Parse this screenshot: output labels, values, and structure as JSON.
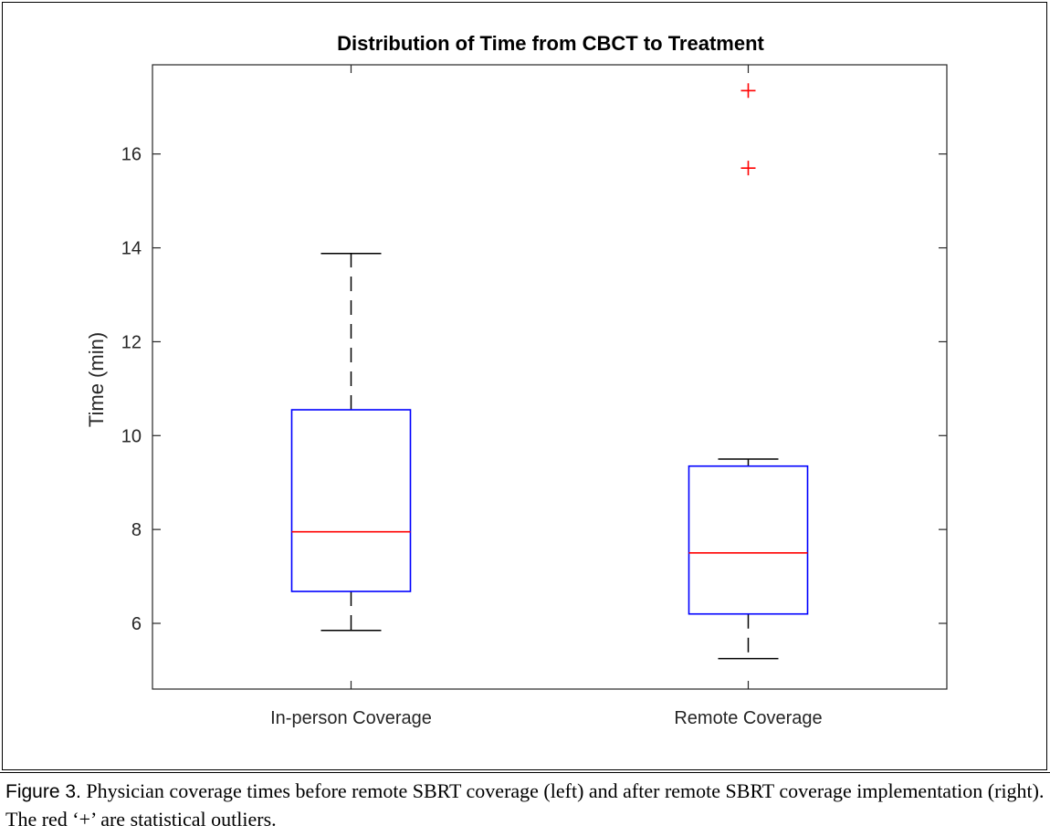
{
  "chart_data": {
    "type": "boxplot",
    "title": "Distribution of Time from CBCT to Treatment",
    "xlabel": "",
    "ylabel": "Time (min)",
    "ylim": [
      4.6,
      17.9
    ],
    "yticks": [
      6,
      8,
      10,
      12,
      14,
      16
    ],
    "grid": false,
    "categories": [
      "In-person Coverage",
      "Remote Coverage"
    ],
    "boxes": [
      {
        "category": "In-person Coverage",
        "whisker_low": 5.85,
        "q1": 6.68,
        "median": 7.95,
        "q3": 10.55,
        "whisker_high": 13.88,
        "outliers": []
      },
      {
        "category": "Remote Coverage",
        "whisker_low": 5.25,
        "q1": 6.2,
        "median": 7.5,
        "q3": 9.35,
        "whisker_high": 9.5,
        "outliers": [
          15.7,
          17.35
        ]
      }
    ],
    "colors": {
      "box": "#0000ff",
      "median": "#ff0000",
      "whisker": "#000000",
      "outlier": "#ff0000"
    }
  },
  "caption": {
    "label": "Figure 3.",
    "text": "Physician coverage times before remote SBRT coverage (left) and after remote SBRT coverage implementation (right). The red ‘+’ are statistical outliers."
  }
}
